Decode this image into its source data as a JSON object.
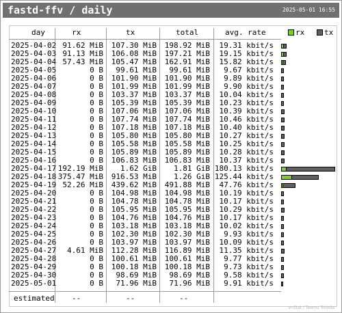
{
  "window": {
    "title": "fastd-ffv / daily",
    "timestamp": "2025-05-01 16:55"
  },
  "table": {
    "headers": {
      "day": "day",
      "rx": "rx",
      "tx": "tx",
      "total": "total",
      "avg_rate": "avg. rate"
    },
    "rows": [
      {
        "day": "2025-04-02",
        "rx": "91.62 MiB",
        "tx": "107.30 MiB",
        "total": "198.92 MiB",
        "avg_rate": "19.31 kbit/s"
      },
      {
        "day": "2025-04-03",
        "rx": "91.13 MiB",
        "tx": "106.08 MiB",
        "total": "197.21 MiB",
        "avg_rate": "19.15 kbit/s"
      },
      {
        "day": "2025-04-04",
        "rx": "57.43 MiB",
        "tx": "105.47 MiB",
        "total": "162.91 MiB",
        "avg_rate": "15.82 kbit/s"
      },
      {
        "day": "2025-04-05",
        "rx": "0 B",
        "tx": "99.61 MiB",
        "total": "99.61 MiB",
        "avg_rate": "9.67 kbit/s"
      },
      {
        "day": "2025-04-06",
        "rx": "0 B",
        "tx": "101.90 MiB",
        "total": "101.90 MiB",
        "avg_rate": "9.89 kbit/s"
      },
      {
        "day": "2025-04-07",
        "rx": "0 B",
        "tx": "101.99 MiB",
        "total": "101.99 MiB",
        "avg_rate": "9.90 kbit/s"
      },
      {
        "day": "2025-04-08",
        "rx": "0 B",
        "tx": "103.37 MiB",
        "total": "103.37 MiB",
        "avg_rate": "10.04 kbit/s"
      },
      {
        "day": "2025-04-09",
        "rx": "0 B",
        "tx": "105.39 MiB",
        "total": "105.39 MiB",
        "avg_rate": "10.23 kbit/s"
      },
      {
        "day": "2025-04-10",
        "rx": "0 B",
        "tx": "107.06 MiB",
        "total": "107.06 MiB",
        "avg_rate": "10.39 kbit/s"
      },
      {
        "day": "2025-04-11",
        "rx": "0 B",
        "tx": "107.74 MiB",
        "total": "107.74 MiB",
        "avg_rate": "10.46 kbit/s"
      },
      {
        "day": "2025-04-12",
        "rx": "0 B",
        "tx": "107.18 MiB",
        "total": "107.18 MiB",
        "avg_rate": "10.40 kbit/s"
      },
      {
        "day": "2025-04-13",
        "rx": "0 B",
        "tx": "105.80 MiB",
        "total": "105.80 MiB",
        "avg_rate": "10.27 kbit/s"
      },
      {
        "day": "2025-04-14",
        "rx": "0 B",
        "tx": "105.58 MiB",
        "total": "105.58 MiB",
        "avg_rate": "10.25 kbit/s"
      },
      {
        "day": "2025-04-15",
        "rx": "0 B",
        "tx": "105.89 MiB",
        "total": "105.89 MiB",
        "avg_rate": "10.28 kbit/s"
      },
      {
        "day": "2025-04-16",
        "rx": "0 B",
        "tx": "106.83 MiB",
        "total": "106.83 MiB",
        "avg_rate": "10.37 kbit/s"
      },
      {
        "day": "2025-04-17",
        "rx": "192.19 MiB",
        "tx": "1.62 GiB",
        "total": "1.81 GiB",
        "avg_rate": "180.13 kbit/s"
      },
      {
        "day": "2025-04-18",
        "rx": "375.47 MiB",
        "tx": "916.53 MiB",
        "total": "1.26 GiB",
        "avg_rate": "125.44 kbit/s"
      },
      {
        "day": "2025-04-19",
        "rx": "52.26 MiB",
        "tx": "439.62 MiB",
        "total": "491.88 MiB",
        "avg_rate": "47.76 kbit/s"
      },
      {
        "day": "2025-04-20",
        "rx": "0 B",
        "tx": "104.98 MiB",
        "total": "104.98 MiB",
        "avg_rate": "10.19 kbit/s"
      },
      {
        "day": "2025-04-21",
        "rx": "0 B",
        "tx": "104.78 MiB",
        "total": "104.78 MiB",
        "avg_rate": "10.17 kbit/s"
      },
      {
        "day": "2025-04-22",
        "rx": "0 B",
        "tx": "105.95 MiB",
        "total": "105.95 MiB",
        "avg_rate": "10.29 kbit/s"
      },
      {
        "day": "2025-04-23",
        "rx": "0 B",
        "tx": "104.76 MiB",
        "total": "104.76 MiB",
        "avg_rate": "10.17 kbit/s"
      },
      {
        "day": "2025-04-24",
        "rx": "0 B",
        "tx": "103.18 MiB",
        "total": "103.18 MiB",
        "avg_rate": "10.02 kbit/s"
      },
      {
        "day": "2025-04-25",
        "rx": "0 B",
        "tx": "102.30 MiB",
        "total": "102.30 MiB",
        "avg_rate": "9.93 kbit/s"
      },
      {
        "day": "2025-04-26",
        "rx": "0 B",
        "tx": "103.97 MiB",
        "total": "103.97 MiB",
        "avg_rate": "10.09 kbit/s"
      },
      {
        "day": "2025-04-27",
        "rx": "4.61 MiB",
        "tx": "112.28 MiB",
        "total": "116.89 MiB",
        "avg_rate": "11.35 kbit/s"
      },
      {
        "day": "2025-04-28",
        "rx": "0 B",
        "tx": "100.61 MiB",
        "total": "100.61 MiB",
        "avg_rate": "9.77 kbit/s"
      },
      {
        "day": "2025-04-29",
        "rx": "0 B",
        "tx": "100.18 MiB",
        "total": "100.18 MiB",
        "avg_rate": "9.73 kbit/s"
      },
      {
        "day": "2025-04-30",
        "rx": "0 B",
        "tx": "98.69 MiB",
        "total": "98.69 MiB",
        "avg_rate": "9.58 kbit/s"
      },
      {
        "day": "2025-05-01",
        "rx": "0 B",
        "tx": "71.96 MiB",
        "total": "71.96 MiB",
        "avg_rate": "9.91 kbit/s"
      }
    ],
    "estimated": {
      "label": "estimated",
      "rx": "--",
      "tx": "--",
      "total": "--"
    }
  },
  "legend": {
    "rx": {
      "label": "rx",
      "color": "#7fcc2a"
    },
    "tx": {
      "label": "tx",
      "color": "#606060"
    }
  },
  "footer": {
    "credit": "vnStat / Teemu Toivola"
  }
}
